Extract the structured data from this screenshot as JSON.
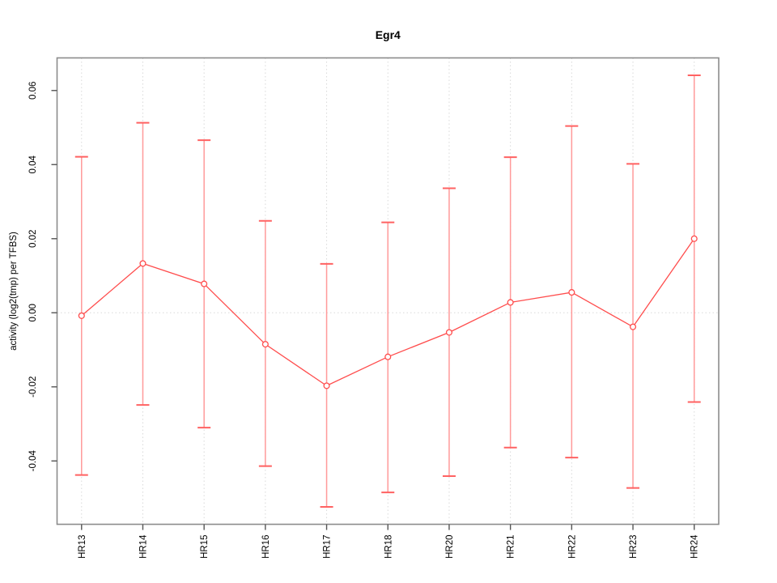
{
  "chart_data": {
    "type": "line",
    "title": "Egr4",
    "xlabel": "",
    "ylabel": "activity (log2(tmp) per TFBS)",
    "categories": [
      "HR13",
      "HR14",
      "HR15",
      "HR16",
      "HR17",
      "HR18",
      "HR20",
      "HR21",
      "HR22",
      "HR23",
      "HR24"
    ],
    "series": [
      {
        "name": "activity",
        "values": [
          -0.0008,
          0.0133,
          0.0078,
          -0.0085,
          -0.0197,
          -0.0119,
          -0.0053,
          0.0028,
          0.0055,
          -0.0038,
          0.02
        ],
        "error_low": [
          -0.0438,
          -0.0249,
          -0.031,
          -0.0414,
          -0.0524,
          -0.0485,
          -0.0441,
          -0.0364,
          -0.0391,
          -0.0473,
          -0.0241
        ],
        "error_high": [
          0.0421,
          0.0513,
          0.0466,
          0.0248,
          0.0132,
          0.0244,
          0.0336,
          0.042,
          0.0504,
          0.0402,
          0.0641
        ]
      }
    ],
    "yticks": [
      -0.04,
      -0.02,
      0.0,
      0.02,
      0.04,
      0.06
    ],
    "ytick_labels": [
      "-0.04",
      "-0.02",
      "0.00",
      "0.02",
      "0.04",
      "0.06"
    ],
    "ylim": [
      -0.0571,
      0.0688
    ],
    "legend_position": "none",
    "grid": {
      "vertical_dotted_at_categories": true,
      "horizontal_dotted_at_zero": true
    },
    "marker": "open-circle",
    "colors": {
      "line": "#ff4d4d",
      "point": "#ff4d4d",
      "errorbar": "#ff9a9a",
      "errorbar_cap": "#ff6262",
      "gridline": "#d9d9d9",
      "zero_line": "#d9d9d9",
      "box": "#8c8c8c",
      "tick": "#555555",
      "text": "#000000"
    }
  }
}
